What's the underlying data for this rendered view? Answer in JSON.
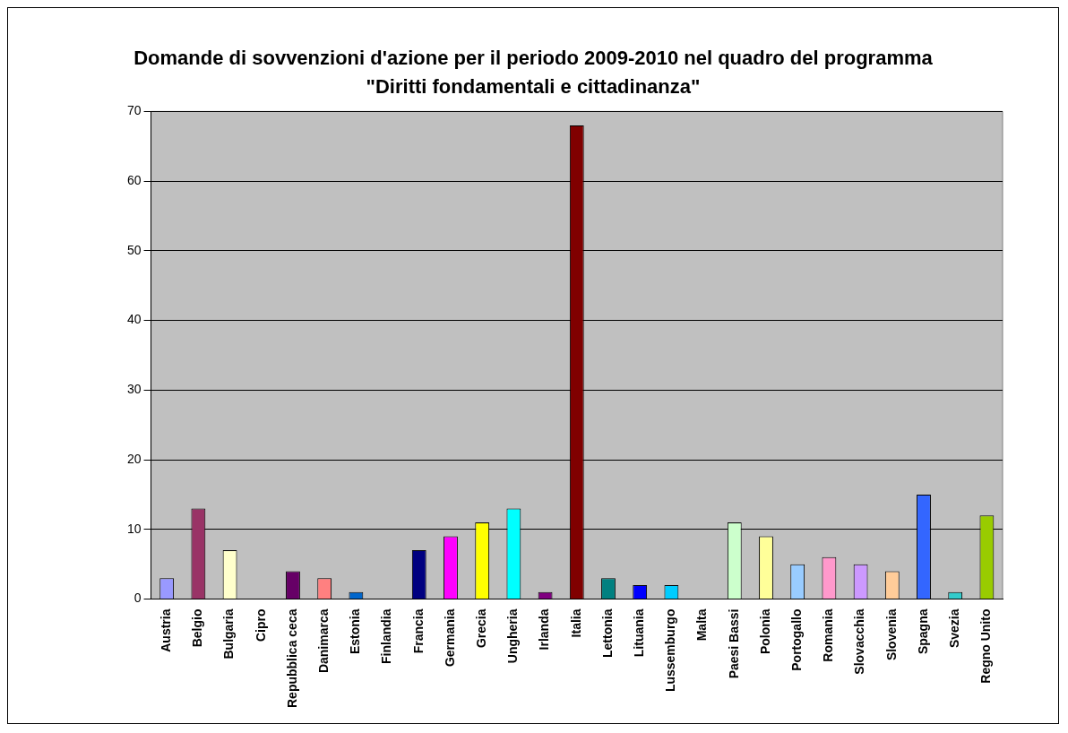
{
  "chart_data": {
    "type": "bar",
    "title": "Domande di sovvenzioni d'azione per il periodo 2009-2010 nel quadro del programma \"Diritti fondamentali e cittadinanza\"",
    "categories": [
      "Austria",
      "Belgio",
      "Bulgaria",
      "Cipro",
      "Repubblica ceca",
      "Danimarca",
      "Estonia",
      "Finlandia",
      "Francia",
      "Germania",
      "Grecia",
      "Ungheria",
      "Irlanda",
      "Italia",
      "Lettonia",
      "Lituania",
      "Lussemburgo",
      "Malta",
      "Paesi Bassi",
      "Polonia",
      "Portogallo",
      "Romania",
      "Slovacchia",
      "Slovenia",
      "Spagna",
      "Svezia",
      "Regno Unito"
    ],
    "values": [
      3,
      13,
      7,
      0,
      4,
      3,
      1,
      0,
      7,
      9,
      11,
      13,
      1,
      68,
      3,
      2,
      2,
      0,
      11,
      9,
      5,
      6,
      5,
      4,
      15,
      1,
      12
    ],
    "colors": [
      "#9999ff",
      "#993366",
      "#ffffcc",
      "#ccffff",
      "#660066",
      "#ff8080",
      "#0066cc",
      "#ccccff",
      "#000080",
      "#ff00ff",
      "#ffff00",
      "#00ffff",
      "#800080",
      "#800000",
      "#008080",
      "#0000ff",
      "#00ccff",
      "#ccffff",
      "#ccffcc",
      "#ffff99",
      "#99ccff",
      "#ff99cc",
      "#cc99ff",
      "#ffcc99",
      "#3366ff",
      "#33cccc",
      "#99cc00"
    ],
    "ylim": [
      0,
      70
    ],
    "yticks": [
      0,
      10,
      20,
      30,
      40,
      50,
      60,
      70
    ],
    "grid": "y",
    "legend": false
  }
}
